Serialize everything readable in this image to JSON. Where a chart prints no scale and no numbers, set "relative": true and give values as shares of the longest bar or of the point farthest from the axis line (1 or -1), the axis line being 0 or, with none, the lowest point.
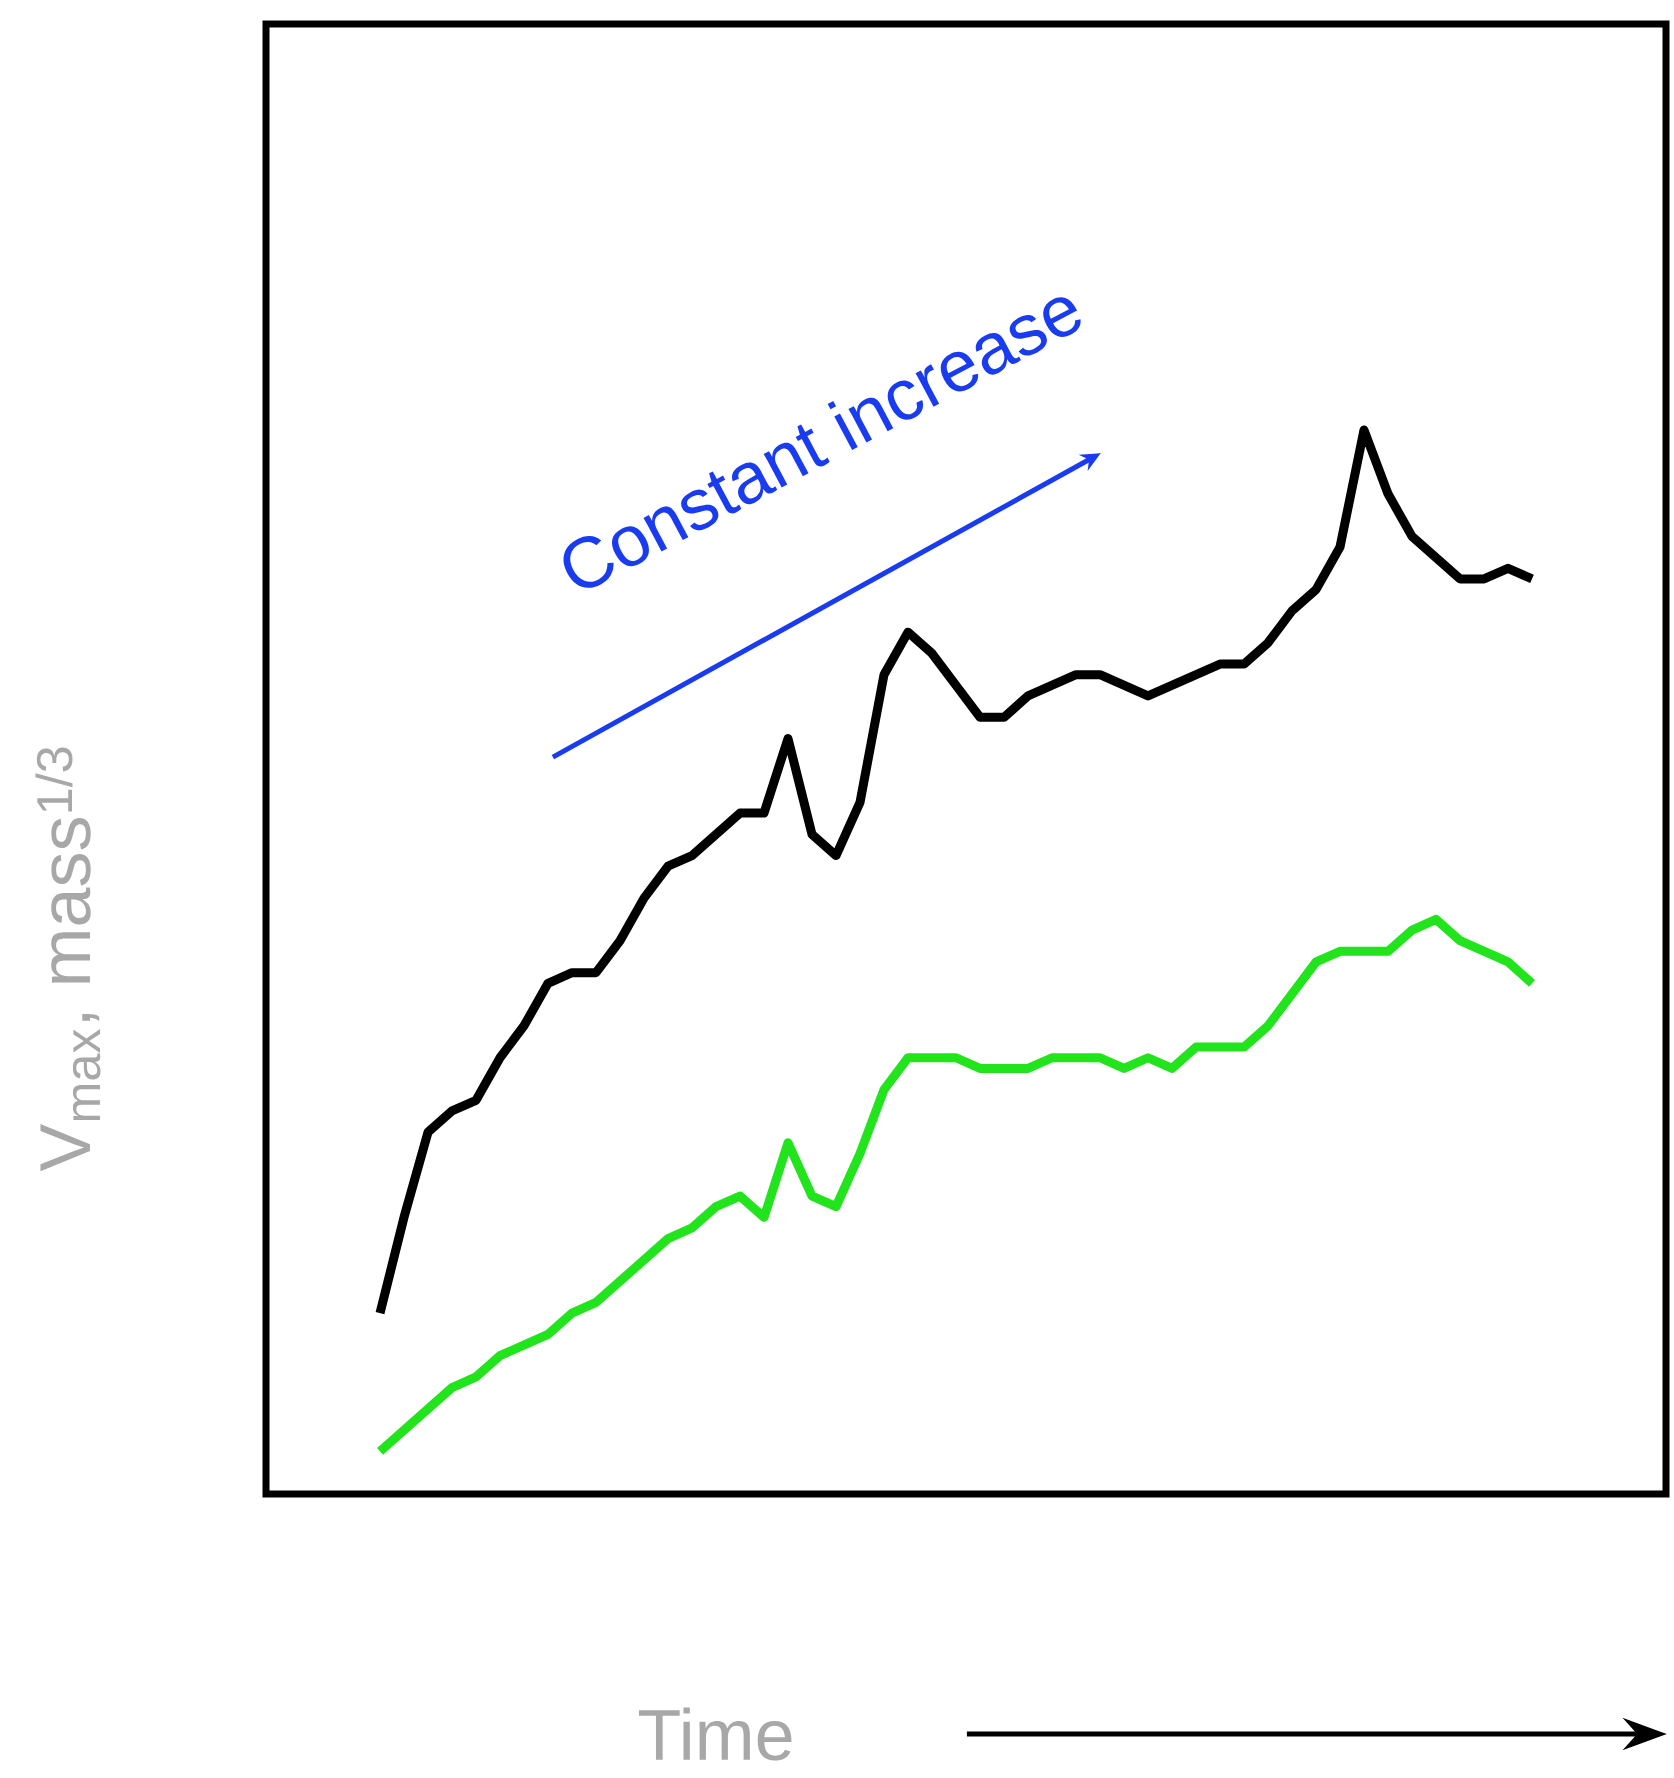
{
  "chart_data": {
    "type": "line",
    "relative": true,
    "xlabel": "Time",
    "ylabel": "V$_{max}$, mass$^{1/3}$",
    "annotations": [
      "Constant increase"
    ],
    "categories": [
      null,
      null,
      null,
      null,
      null,
      null,
      null,
      null,
      null,
      null,
      null,
      null,
      null,
      null,
      null,
      null,
      null,
      null,
      null,
      null,
      null,
      null,
      null,
      null,
      null,
      null,
      null,
      null,
      null,
      null,
      null,
      null,
      null,
      null,
      null,
      null,
      null,
      null,
      null,
      null,
      null,
      null,
      null,
      null,
      null,
      null,
      null,
      null,
      null
    ],
    "series": [
      {
        "color": "#000000",
        "values": [
          0.17,
          0.26,
          0.34,
          0.36,
          0.37,
          0.41,
          0.44,
          0.48,
          0.49,
          0.49,
          0.52,
          0.56,
          0.59,
          0.6,
          0.62,
          0.64,
          0.64,
          0.71,
          0.62,
          0.6,
          0.65,
          0.77,
          0.81,
          0.79,
          0.76,
          0.73,
          0.73,
          0.75,
          0.76,
          0.77,
          0.77,
          0.76,
          0.75,
          0.76,
          0.77,
          0.78,
          0.78,
          0.8,
          0.83,
          0.85,
          0.89,
          1.0,
          0.94,
          0.9,
          0.88,
          0.86,
          0.86,
          0.87,
          0.86
        ]
      },
      {
        "color": "#22e41c",
        "values": [
          0.04,
          0.06,
          0.08,
          0.1,
          0.11,
          0.13,
          0.14,
          0.15,
          0.17,
          0.18,
          0.2,
          0.22,
          0.24,
          0.25,
          0.27,
          0.28,
          0.26,
          0.33,
          0.28,
          0.27,
          0.32,
          0.38,
          0.41,
          0.41,
          0.41,
          0.4,
          0.4,
          0.4,
          0.41,
          0.41,
          0.41,
          0.4,
          0.41,
          0.4,
          0.42,
          0.42,
          0.42,
          0.44,
          0.47,
          0.5,
          0.51,
          0.51,
          0.51,
          0.53,
          0.54,
          0.52,
          0.51,
          0.5,
          0.48
        ]
      }
    ]
  }
}
